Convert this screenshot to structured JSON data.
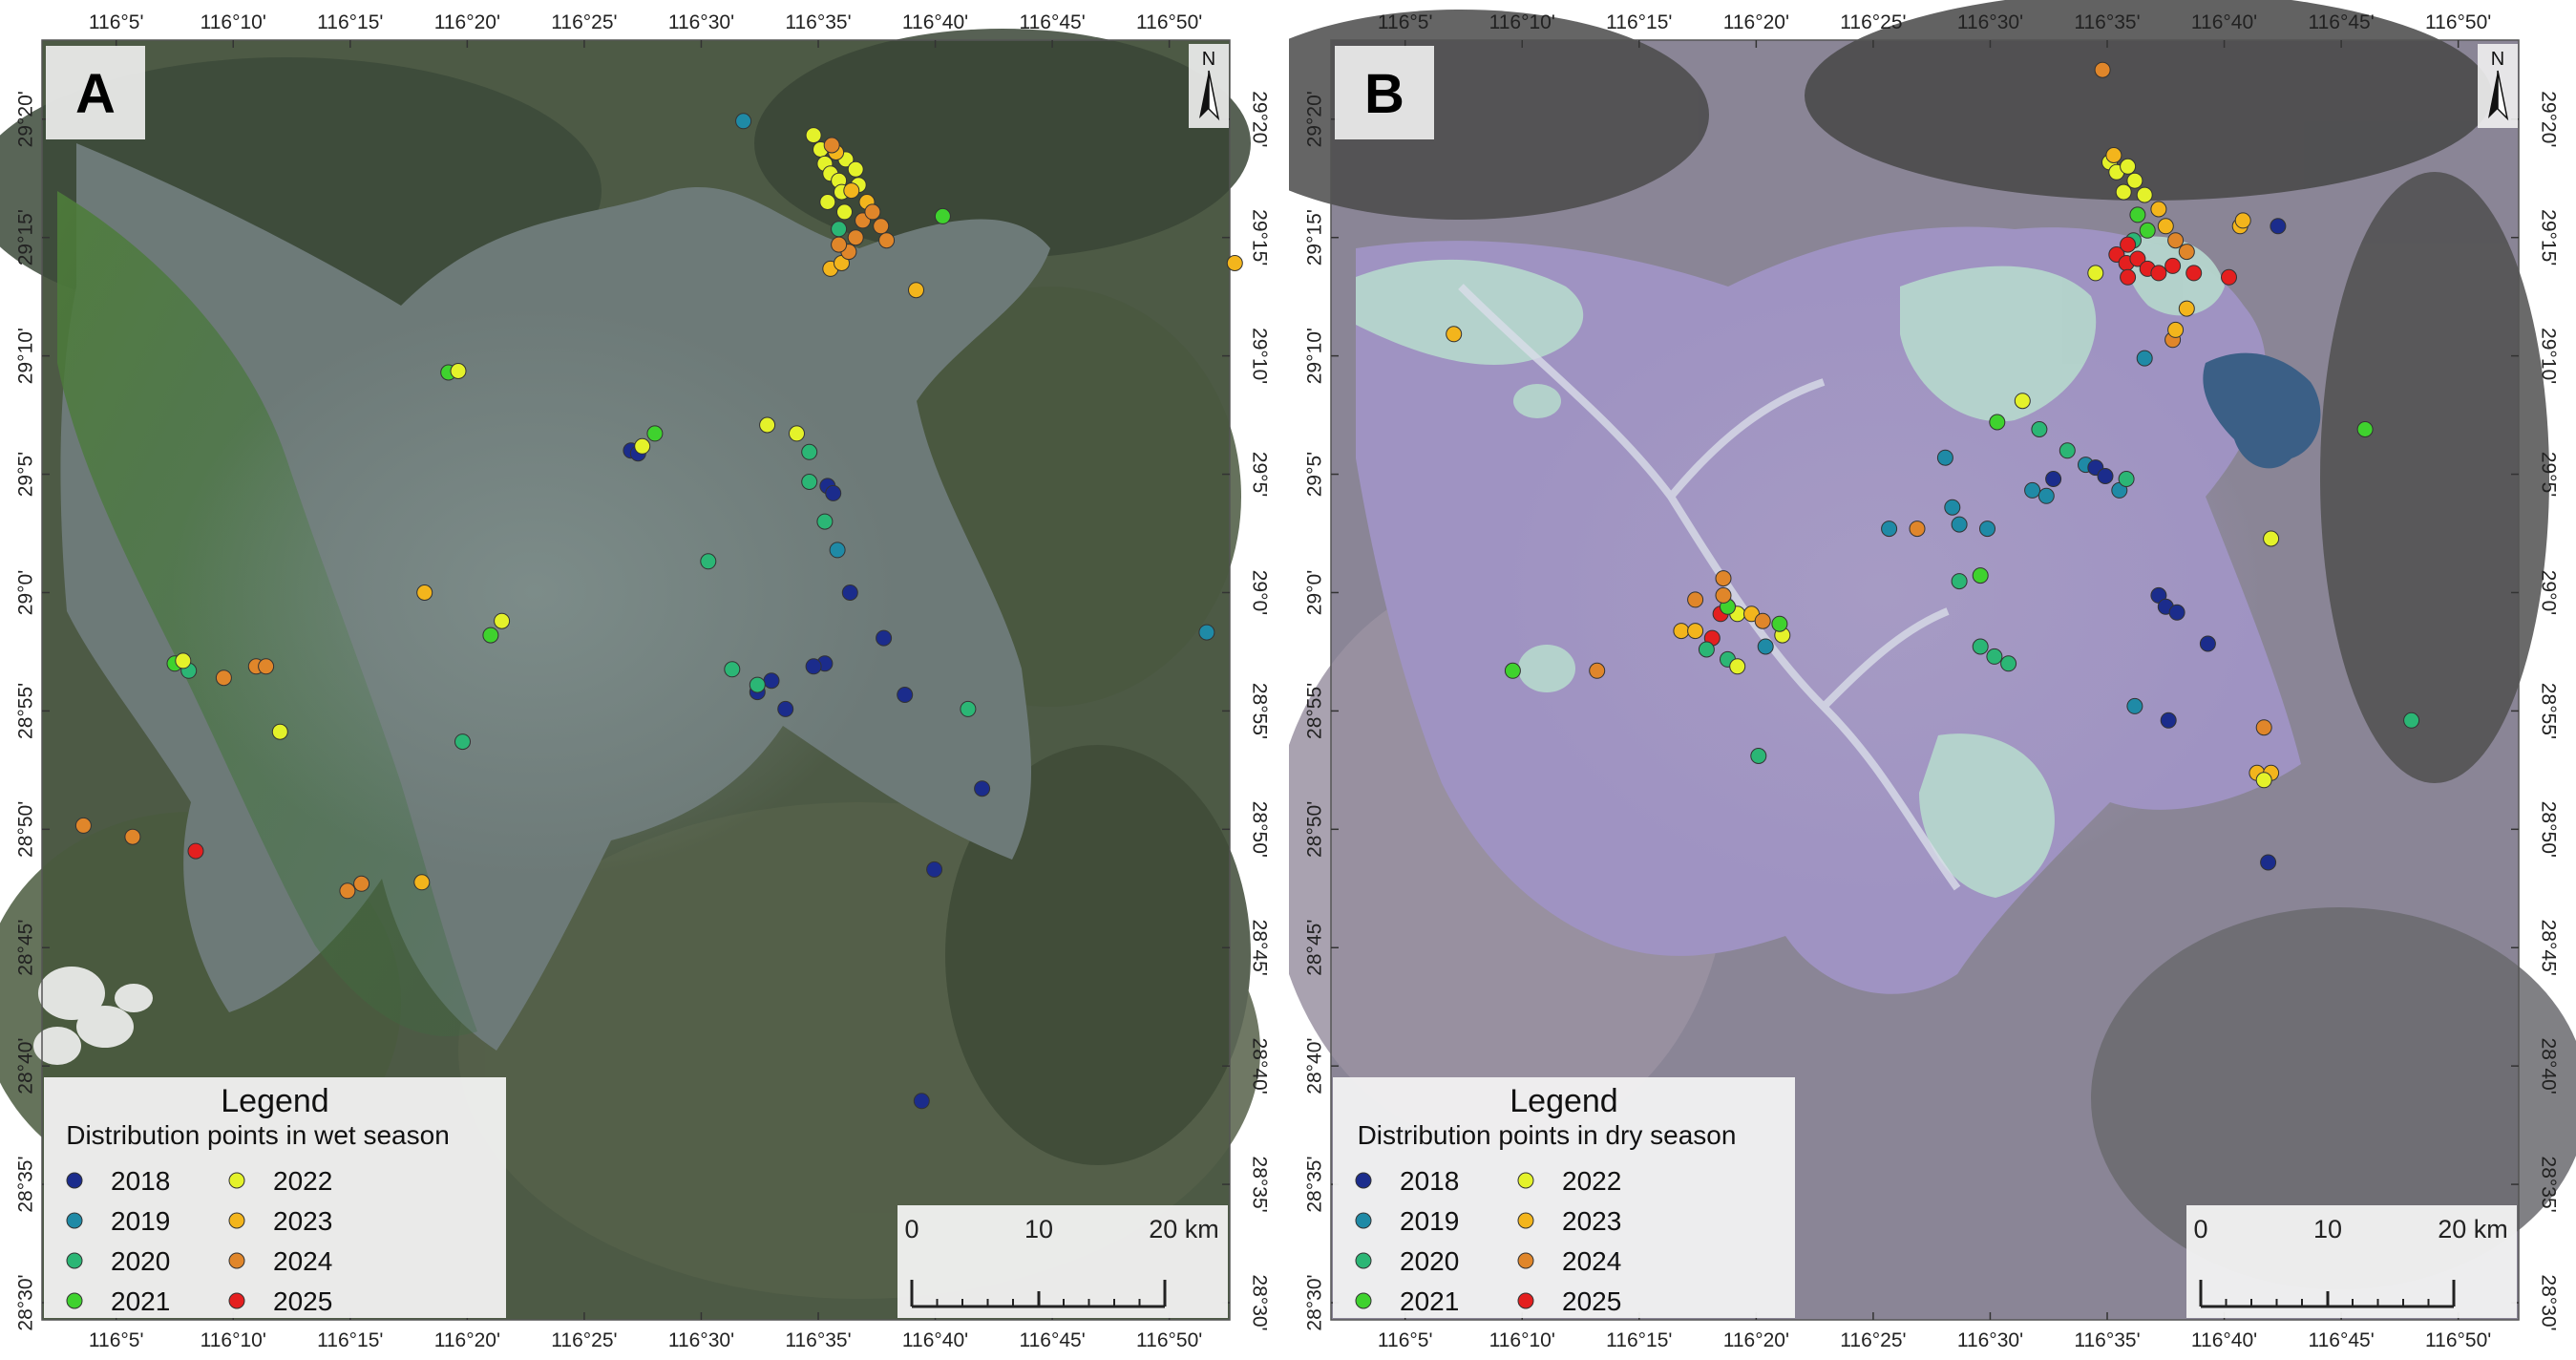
{
  "colors": {
    "2018": "#1b2c8c",
    "2019": "#1f8aa6",
    "2020": "#2bb675",
    "2021": "#3fd22e",
    "2022": "#e4f22a",
    "2023": "#f3b51c",
    "2024": "#e0862a",
    "2025": "#e41f1f"
  },
  "x_ticks": [
    "116°5'",
    "116°10'",
    "116°15'",
    "116°20'",
    "116°25'",
    "116°30'",
    "116°35'",
    "116°40'",
    "116°45'",
    "116°50'"
  ],
  "y_ticks": [
    "29°20'",
    "29°15'",
    "29°10'",
    "29°5'",
    "29°0'",
    "28°55'",
    "28°50'",
    "28°45'",
    "28°40'",
    "28°35'",
    "28°30'"
  ],
  "scale_bar": {
    "labels": [
      "0",
      "10",
      "20 km"
    ]
  },
  "north_label": "N",
  "panels": [
    {
      "letter": "A",
      "legend": {
        "title": "Legend",
        "subtitle": "Distribution points in wet season",
        "years": [
          "2018",
          "2019",
          "2020",
          "2021",
          "2022",
          "2023",
          "2024",
          "2025"
        ]
      },
      "points": [
        {
          "year": "2019",
          "lon": 116.53,
          "lat": 29.332
        },
        {
          "year": "2022",
          "lon": 116.58,
          "lat": 29.322
        },
        {
          "year": "2022",
          "lon": 116.585,
          "lat": 29.312
        },
        {
          "year": "2022",
          "lon": 116.588,
          "lat": 29.302
        },
        {
          "year": "2022",
          "lon": 116.592,
          "lat": 29.295
        },
        {
          "year": "2022",
          "lon": 116.598,
          "lat": 29.29
        },
        {
          "year": "2022",
          "lon": 116.6,
          "lat": 29.282
        },
        {
          "year": "2022",
          "lon": 116.603,
          "lat": 29.305
        },
        {
          "year": "2022",
          "lon": 116.61,
          "lat": 29.298
        },
        {
          "year": "2022",
          "lon": 116.612,
          "lat": 29.287
        },
        {
          "year": "2022",
          "lon": 116.59,
          "lat": 29.275
        },
        {
          "year": "2022",
          "lon": 116.602,
          "lat": 29.268
        },
        {
          "year": "2023",
          "lon": 116.596,
          "lat": 29.31
        },
        {
          "year": "2023",
          "lon": 116.607,
          "lat": 29.283
        },
        {
          "year": "2023",
          "lon": 116.618,
          "lat": 29.275
        },
        {
          "year": "2023",
          "lon": 116.592,
          "lat": 29.228
        },
        {
          "year": "2023",
          "lon": 116.6,
          "lat": 29.232
        },
        {
          "year": "2024",
          "lon": 116.593,
          "lat": 29.315
        },
        {
          "year": "2024",
          "lon": 116.615,
          "lat": 29.262
        },
        {
          "year": "2024",
          "lon": 116.622,
          "lat": 29.268
        },
        {
          "year": "2024",
          "lon": 116.628,
          "lat": 29.258
        },
        {
          "year": "2024",
          "lon": 116.61,
          "lat": 29.25
        },
        {
          "year": "2024",
          "lon": 116.605,
          "lat": 29.24
        },
        {
          "year": "2024",
          "lon": 116.598,
          "lat": 29.245
        },
        {
          "year": "2024",
          "lon": 116.632,
          "lat": 29.248
        },
        {
          "year": "2020",
          "lon": 116.598,
          "lat": 29.256
        },
        {
          "year": "2021",
          "lon": 116.672,
          "lat": 29.265
        },
        {
          "year": "2023",
          "lon": 116.653,
          "lat": 29.213
        },
        {
          "year": "2023",
          "lon": 116.88,
          "lat": 29.232
        },
        {
          "year": "2021",
          "lon": 116.32,
          "lat": 29.155
        },
        {
          "year": "2022",
          "lon": 116.327,
          "lat": 29.156
        },
        {
          "year": "2018",
          "lon": 116.45,
          "lat": 29.1
        },
        {
          "year": "2018",
          "lon": 116.455,
          "lat": 29.098
        },
        {
          "year": "2022",
          "lon": 116.458,
          "lat": 29.103
        },
        {
          "year": "2021",
          "lon": 116.467,
          "lat": 29.112
        },
        {
          "year": "2022",
          "lon": 116.547,
          "lat": 29.118
        },
        {
          "year": "2022",
          "lon": 116.568,
          "lat": 29.112
        },
        {
          "year": "2020",
          "lon": 116.577,
          "lat": 29.099
        },
        {
          "year": "2020",
          "lon": 116.577,
          "lat": 29.078
        },
        {
          "year": "2018",
          "lon": 116.59,
          "lat": 29.075
        },
        {
          "year": "2018",
          "lon": 116.594,
          "lat": 29.07
        },
        {
          "year": "2020",
          "lon": 116.588,
          "lat": 29.05
        },
        {
          "year": "2019",
          "lon": 116.597,
          "lat": 29.03
        },
        {
          "year": "2020",
          "lon": 116.505,
          "lat": 29.022
        },
        {
          "year": "2018",
          "lon": 116.606,
          "lat": 29.0
        },
        {
          "year": "2018",
          "lon": 116.63,
          "lat": 28.968
        },
        {
          "year": "2018",
          "lon": 116.588,
          "lat": 28.95
        },
        {
          "year": "2018",
          "lon": 116.58,
          "lat": 28.948
        },
        {
          "year": "2018",
          "lon": 116.55,
          "lat": 28.938
        },
        {
          "year": "2018",
          "lon": 116.54,
          "lat": 28.93
        },
        {
          "year": "2018",
          "lon": 116.56,
          "lat": 28.918
        },
        {
          "year": "2018",
          "lon": 116.645,
          "lat": 28.928
        },
        {
          "year": "2020",
          "lon": 116.522,
          "lat": 28.946
        },
        {
          "year": "2020",
          "lon": 116.54,
          "lat": 28.935
        },
        {
          "year": "2020",
          "lon": 116.69,
          "lat": 28.918
        },
        {
          "year": "2018",
          "lon": 116.7,
          "lat": 28.862
        },
        {
          "year": "2018",
          "lon": 116.666,
          "lat": 28.805
        },
        {
          "year": "2018",
          "lon": 116.657,
          "lat": 28.642
        },
        {
          "year": "2019",
          "lon": 116.86,
          "lat": 28.972
        },
        {
          "year": "2023",
          "lon": 116.303,
          "lat": 29.0
        },
        {
          "year": "2022",
          "lon": 116.358,
          "lat": 28.98
        },
        {
          "year": "2021",
          "lon": 116.35,
          "lat": 28.97
        },
        {
          "year": "2020",
          "lon": 116.33,
          "lat": 28.895
        },
        {
          "year": "2022",
          "lon": 116.2,
          "lat": 28.902
        },
        {
          "year": "2021",
          "lon": 116.125,
          "lat": 28.95
        },
        {
          "year": "2020",
          "lon": 116.135,
          "lat": 28.945
        },
        {
          "year": "2022",
          "lon": 116.131,
          "lat": 28.952
        },
        {
          "year": "2024",
          "lon": 116.16,
          "lat": 28.94
        },
        {
          "year": "2024",
          "lon": 116.183,
          "lat": 28.948
        },
        {
          "year": "2024",
          "lon": 116.19,
          "lat": 28.948
        },
        {
          "year": "2024",
          "lon": 116.06,
          "lat": 28.836
        },
        {
          "year": "2024",
          "lon": 116.095,
          "lat": 28.828
        },
        {
          "year": "2025",
          "lon": 116.14,
          "lat": 28.818
        },
        {
          "year": "2024",
          "lon": 116.248,
          "lat": 28.79
        },
        {
          "year": "2024",
          "lon": 116.258,
          "lat": 28.795
        },
        {
          "year": "2023",
          "lon": 116.301,
          "lat": 28.796
        }
      ]
    },
    {
      "letter": "B",
      "legend": {
        "title": "Legend",
        "subtitle": "Distribution points in dry season",
        "years": [
          "2018",
          "2019",
          "2020",
          "2021",
          "2022",
          "2023",
          "2024",
          "2025"
        ]
      },
      "points": [
        {
          "year": "2024",
          "lon": 116.58,
          "lat": 29.368
        },
        {
          "year": "2022",
          "lon": 116.585,
          "lat": 29.303
        },
        {
          "year": "2022",
          "lon": 116.59,
          "lat": 29.296
        },
        {
          "year": "2022",
          "lon": 116.598,
          "lat": 29.3
        },
        {
          "year": "2022",
          "lon": 116.603,
          "lat": 29.29
        },
        {
          "year": "2022",
          "lon": 116.595,
          "lat": 29.282
        },
        {
          "year": "2022",
          "lon": 116.61,
          "lat": 29.28
        },
        {
          "year": "2023",
          "lon": 116.588,
          "lat": 29.308
        },
        {
          "year": "2023",
          "lon": 116.62,
          "lat": 29.27
        },
        {
          "year": "2023",
          "lon": 116.625,
          "lat": 29.258
        },
        {
          "year": "2023",
          "lon": 116.678,
          "lat": 29.258
        },
        {
          "year": "2023",
          "lon": 116.68,
          "lat": 29.262
        },
        {
          "year": "2021",
          "lon": 116.605,
          "lat": 29.266
        },
        {
          "year": "2021",
          "lon": 116.612,
          "lat": 29.255
        },
        {
          "year": "2020",
          "lon": 116.602,
          "lat": 29.248
        },
        {
          "year": "2024",
          "lon": 116.632,
          "lat": 29.248
        },
        {
          "year": "2024",
          "lon": 116.64,
          "lat": 29.24
        },
        {
          "year": "2025",
          "lon": 116.59,
          "lat": 29.238
        },
        {
          "year": "2025",
          "lon": 116.597,
          "lat": 29.232
        },
        {
          "year": "2025",
          "lon": 116.605,
          "lat": 29.235
        },
        {
          "year": "2025",
          "lon": 116.612,
          "lat": 29.228
        },
        {
          "year": "2025",
          "lon": 116.62,
          "lat": 29.225
        },
        {
          "year": "2025",
          "lon": 116.598,
          "lat": 29.222
        },
        {
          "year": "2025",
          "lon": 116.63,
          "lat": 29.23
        },
        {
          "year": "2025",
          "lon": 116.645,
          "lat": 29.225
        },
        {
          "year": "2025",
          "lon": 116.67,
          "lat": 29.222
        },
        {
          "year": "2025",
          "lon": 116.598,
          "lat": 29.245
        },
        {
          "year": "2022",
          "lon": 116.575,
          "lat": 29.225
        },
        {
          "year": "2023",
          "lon": 116.64,
          "lat": 29.2
        },
        {
          "year": "2024",
          "lon": 116.63,
          "lat": 29.178
        },
        {
          "year": "2023",
          "lon": 116.632,
          "lat": 29.185
        },
        {
          "year": "2019",
          "lon": 116.61,
          "lat": 29.165
        },
        {
          "year": "2018",
          "lon": 116.705,
          "lat": 29.258
        },
        {
          "year": "2023",
          "lon": 116.118,
          "lat": 29.182
        },
        {
          "year": "2022",
          "lon": 116.523,
          "lat": 29.135
        },
        {
          "year": "2021",
          "lon": 116.505,
          "lat": 29.12
        },
        {
          "year": "2020",
          "lon": 116.535,
          "lat": 29.115
        },
        {
          "year": "2020",
          "lon": 116.555,
          "lat": 29.1
        },
        {
          "year": "2019",
          "lon": 116.568,
          "lat": 29.09
        },
        {
          "year": "2018",
          "lon": 116.575,
          "lat": 29.088
        },
        {
          "year": "2018",
          "lon": 116.582,
          "lat": 29.082
        },
        {
          "year": "2018",
          "lon": 116.545,
          "lat": 29.08
        },
        {
          "year": "2019",
          "lon": 116.53,
          "lat": 29.072
        },
        {
          "year": "2019",
          "lon": 116.54,
          "lat": 29.068
        },
        {
          "year": "2019",
          "lon": 116.592,
          "lat": 29.072
        },
        {
          "year": "2020",
          "lon": 116.597,
          "lat": 29.08
        },
        {
          "year": "2019",
          "lon": 116.468,
          "lat": 29.095
        },
        {
          "year": "2019",
          "lon": 116.473,
          "lat": 29.06
        },
        {
          "year": "2019",
          "lon": 116.478,
          "lat": 29.048
        },
        {
          "year": "2019",
          "lon": 116.498,
          "lat": 29.045
        },
        {
          "year": "2020",
          "lon": 116.478,
          "lat": 29.008
        },
        {
          "year": "2021",
          "lon": 116.493,
          "lat": 29.012
        },
        {
          "year": "2021",
          "lon": 116.767,
          "lat": 29.115
        },
        {
          "year": "2022",
          "lon": 116.7,
          "lat": 29.038
        },
        {
          "year": "2018",
          "lon": 116.62,
          "lat": 28.998
        },
        {
          "year": "2018",
          "lon": 116.625,
          "lat": 28.99
        },
        {
          "year": "2018",
          "lon": 116.633,
          "lat": 28.986
        },
        {
          "year": "2018",
          "lon": 116.655,
          "lat": 28.964
        },
        {
          "year": "2019",
          "lon": 116.603,
          "lat": 28.92
        },
        {
          "year": "2018",
          "lon": 116.627,
          "lat": 28.91
        },
        {
          "year": "2020",
          "lon": 116.493,
          "lat": 28.962
        },
        {
          "year": "2020",
          "lon": 116.503,
          "lat": 28.955
        },
        {
          "year": "2020",
          "lon": 116.513,
          "lat": 28.95
        },
        {
          "year": "2019",
          "lon": 116.428,
          "lat": 29.045
        },
        {
          "year": "2024",
          "lon": 116.448,
          "lat": 29.045
        },
        {
          "year": "2024",
          "lon": 116.695,
          "lat": 28.905
        },
        {
          "year": "2023",
          "lon": 116.69,
          "lat": 28.873
        },
        {
          "year": "2023",
          "lon": 116.7,
          "lat": 28.873
        },
        {
          "year": "2022",
          "lon": 116.695,
          "lat": 28.868
        },
        {
          "year": "2018",
          "lon": 116.698,
          "lat": 28.81
        },
        {
          "year": "2020",
          "lon": 116.8,
          "lat": 28.91
        },
        {
          "year": "2024",
          "lon": 116.31,
          "lat": 29.01
        },
        {
          "year": "2024",
          "lon": 116.29,
          "lat": 28.995
        },
        {
          "year": "2023",
          "lon": 116.28,
          "lat": 28.973
        },
        {
          "year": "2023",
          "lon": 116.29,
          "lat": 28.973
        },
        {
          "year": "2025",
          "lon": 116.308,
          "lat": 28.985
        },
        {
          "year": "2025",
          "lon": 116.302,
          "lat": 28.968
        },
        {
          "year": "2022",
          "lon": 116.32,
          "lat": 28.985
        },
        {
          "year": "2021",
          "lon": 116.313,
          "lat": 28.99
        },
        {
          "year": "2023",
          "lon": 116.33,
          "lat": 28.985
        },
        {
          "year": "2024",
          "lon": 116.338,
          "lat": 28.98
        },
        {
          "year": "2022",
          "lon": 116.352,
          "lat": 28.97
        },
        {
          "year": "2019",
          "lon": 116.34,
          "lat": 28.962
        },
        {
          "year": "2021",
          "lon": 116.35,
          "lat": 28.978
        },
        {
          "year": "2020",
          "lon": 116.298,
          "lat": 28.96
        },
        {
          "year": "2020",
          "lon": 116.313,
          "lat": 28.953
        },
        {
          "year": "2022",
          "lon": 116.32,
          "lat": 28.948
        },
        {
          "year": "2020",
          "lon": 116.335,
          "lat": 28.885
        },
        {
          "year": "2021",
          "lon": 116.16,
          "lat": 28.945
        },
        {
          "year": "2024",
          "lon": 116.22,
          "lat": 28.945
        },
        {
          "year": "2024",
          "lon": 116.31,
          "lat": 28.998
        }
      ]
    }
  ]
}
